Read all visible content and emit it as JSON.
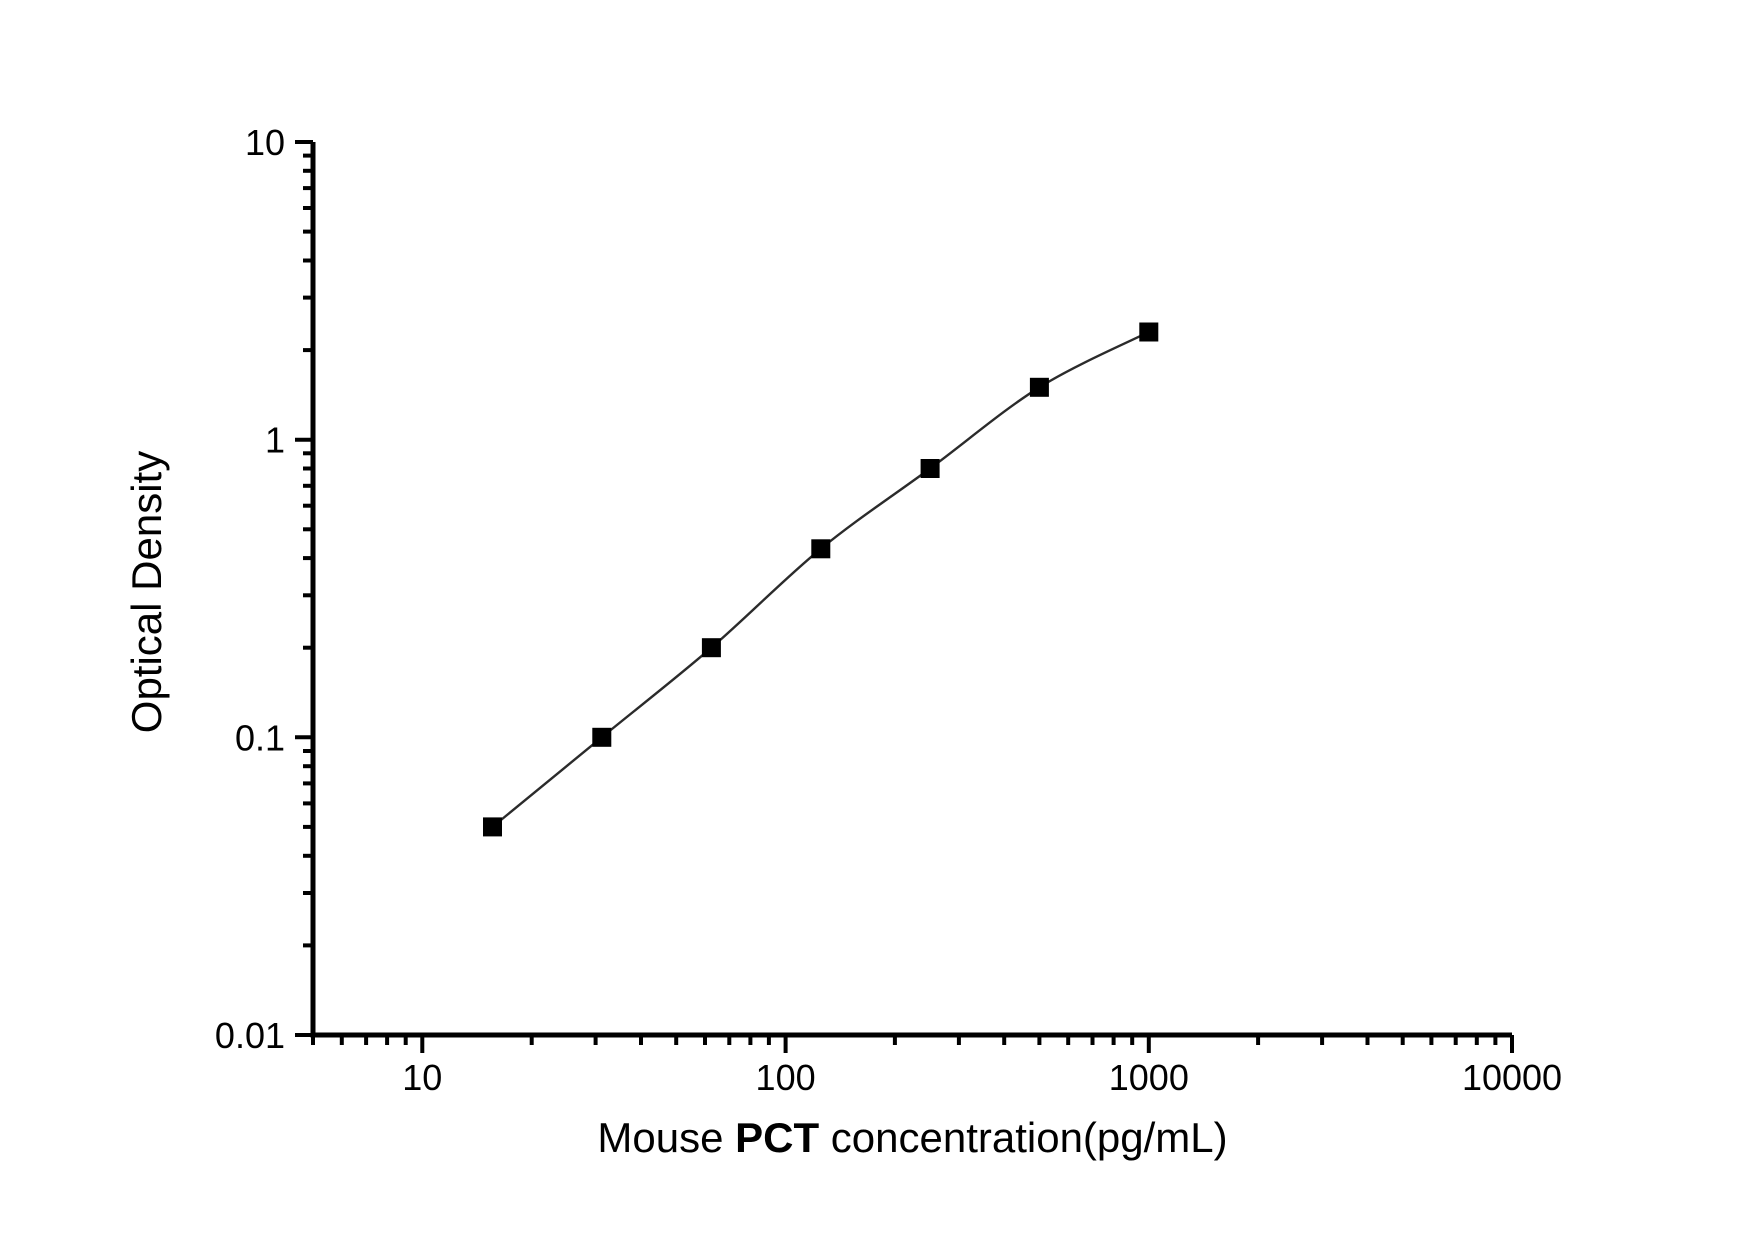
{
  "figure": {
    "background": "#ffffff",
    "title": ""
  },
  "chart_data": {
    "type": "line",
    "subtype": "elisa-standard-curve-scatter-with-smooth-fit",
    "title": "",
    "xlabel": {
      "prefix": "Mouse ",
      "emphasis": "PCT",
      "suffix": " concentration(pg/mL)"
    },
    "ylabel": "Optical Density",
    "xscale": "log",
    "yscale": "log",
    "xlim": [
      5,
      10000
    ],
    "ylim": [
      0.01,
      10
    ],
    "grid": false,
    "legend": "none",
    "series": [
      {
        "name": "standard-curve",
        "marker": "filled-square",
        "line_style": "smooth",
        "x": [
          15.6,
          31.2,
          62.5,
          125,
          250,
          500,
          1000
        ],
        "y": [
          0.05,
          0.1,
          0.2,
          0.43,
          0.8,
          1.5,
          2.3
        ]
      }
    ],
    "x_ticks": {
      "major": [
        10,
        100,
        1000,
        10000
      ],
      "labels": [
        "10",
        "100",
        "1000",
        "10000"
      ]
    },
    "y_ticks": {
      "major": [
        10,
        1,
        0.1,
        0.01
      ],
      "labels": [
        "10",
        "1",
        "0.1",
        "0.01"
      ]
    },
    "colors": {
      "axis": "#000000",
      "line": "#2b2b2b",
      "marker": "#000000",
      "text": "#000000",
      "background": "#ffffff"
    }
  }
}
